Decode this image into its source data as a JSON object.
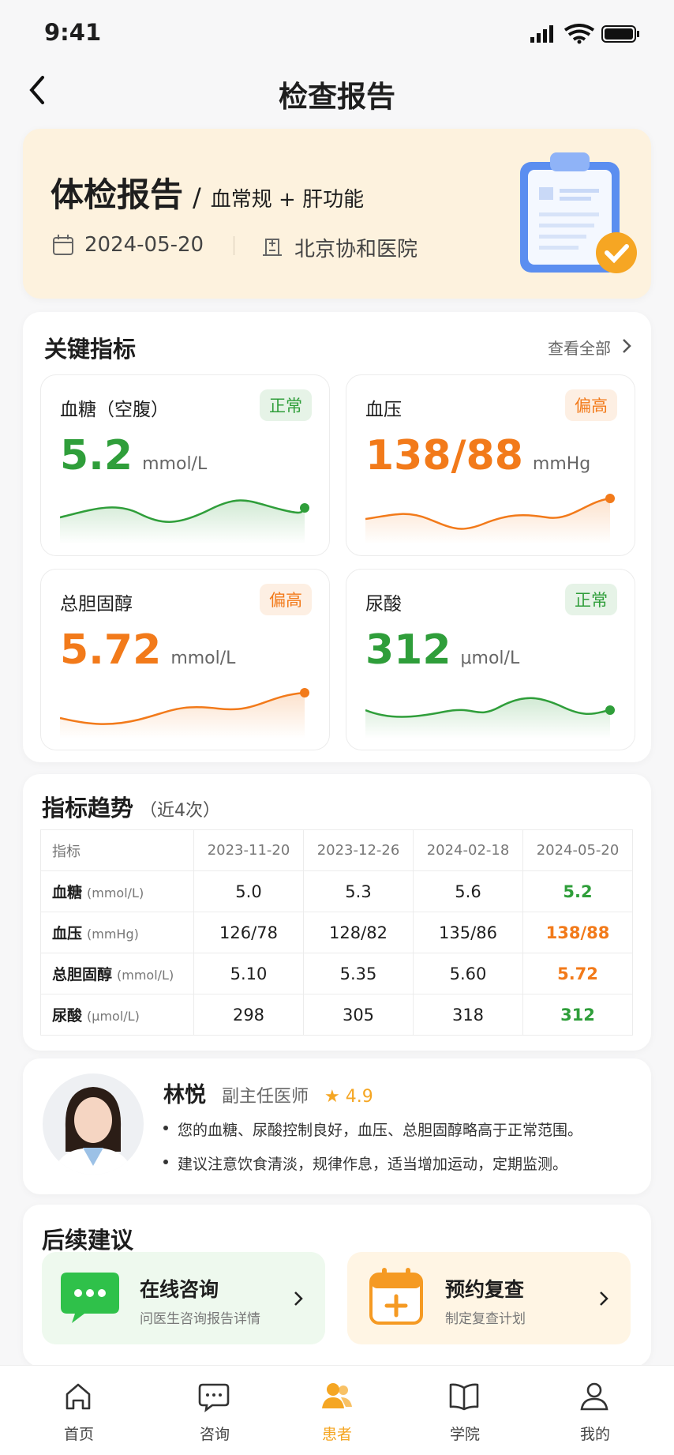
{
  "status_bar": {
    "time": "9:41"
  },
  "header": {
    "title": "检查报告"
  },
  "report": {
    "title": "体检报告",
    "separator": "/",
    "subtitle": "血常规 + 肝功能",
    "date": "2024-05-20",
    "hospital": "北京协和医院"
  },
  "key_metrics": {
    "title": "关键指标",
    "view_all": "查看全部",
    "cards": [
      {
        "name": "血糖（空腹）",
        "status": "正常",
        "value": "5.2",
        "unit": "mmol/L",
        "color": "#2f9e3a"
      },
      {
        "name": "血压",
        "status": "偏高",
        "value": "138/88",
        "unit": "mmHg",
        "color": "#f27a1a"
      },
      {
        "name": "总胆固醇",
        "status": "偏高",
        "value": "5.72",
        "unit": "mmol/L",
        "color": "#f27a1a"
      },
      {
        "name": "尿酸",
        "status": "正常",
        "value": "312",
        "unit": "μmol/L",
        "color": "#2f9e3a"
      }
    ]
  },
  "trend": {
    "title": "指标趋势",
    "note": "（近4次）",
    "columns": [
      "指标",
      "2023-11-20",
      "2023-12-26",
      "2024-02-18",
      "2024-05-20"
    ],
    "rows": [
      [
        "血糖",
        "(mmol/L)",
        "5.0",
        "5.3",
        "5.6",
        "5.2"
      ],
      [
        "血压",
        "(mmHg)",
        "126/78",
        "128/82",
        "135/86",
        "138/88"
      ],
      [
        "总胆固醇",
        "(mmol/L)",
        "5.10",
        "5.35",
        "5.60",
        "5.72"
      ],
      [
        "尿酸",
        "(μmol/L)",
        "298",
        "305",
        "318",
        "312"
      ]
    ]
  },
  "doctor": {
    "name": "林悦",
    "title": "副主任医师",
    "rating": "4.9",
    "comments": [
      "您的血糖、尿酸控制良好，血压、总胆固醇略高于正常范围。",
      "建议注意饮食清淡，规律作息，适当增加运动，定期监测。"
    ]
  },
  "suggestions": {
    "title": "后续建议",
    "items": [
      {
        "title": "在线咨询",
        "desc": "问医生咨询报告详情"
      },
      {
        "title": "预约复查",
        "desc": "制定复查计划"
      }
    ]
  },
  "tab_bar": {
    "items": [
      "首页",
      "咨询",
      "患者",
      "学院",
      "我的"
    ],
    "active": 2
  }
}
